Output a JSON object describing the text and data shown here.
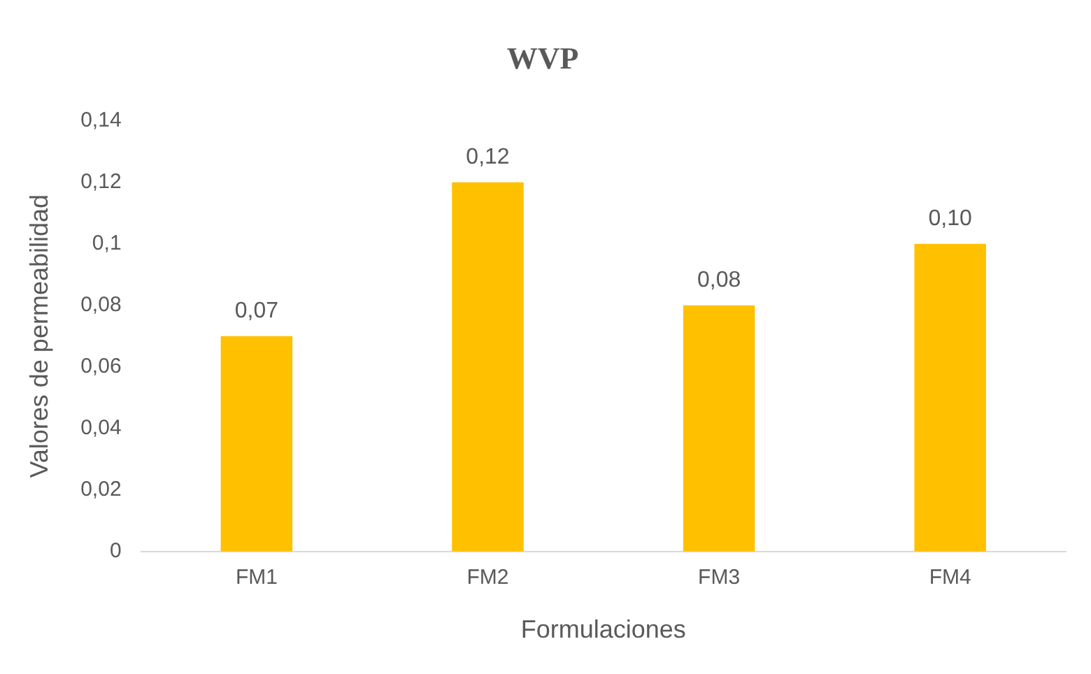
{
  "chart_data": {
    "type": "bar",
    "title": "WVP",
    "xlabel": "Formulaciones",
    "ylabel": "Valores de permeabilidad",
    "categories": [
      "FM1",
      "FM2",
      "FM3",
      "FM4"
    ],
    "series": [
      {
        "color": "#ffc000",
        "values": [
          0.07,
          0.12,
          0.08,
          0.1
        ],
        "value_labels": [
          "0,07",
          "0,12",
          "0,08",
          "0,10"
        ]
      }
    ],
    "ylim": [
      0,
      0.14
    ],
    "yticks": [
      0,
      {
        "value": 0.02,
        "label": "0,02"
      },
      {
        "value": 0.04,
        "label": "0,04"
      },
      {
        "value": 0.06,
        "label": "0,06"
      },
      {
        "value": 0.08,
        "label": "0,08"
      },
      {
        "value": 0.1,
        "label": "0,1"
      },
      {
        "value": 0.12,
        "label": "0,12"
      },
      {
        "value": 0.14,
        "label": "0,14"
      }
    ],
    "grid": false,
    "legend": false
  }
}
